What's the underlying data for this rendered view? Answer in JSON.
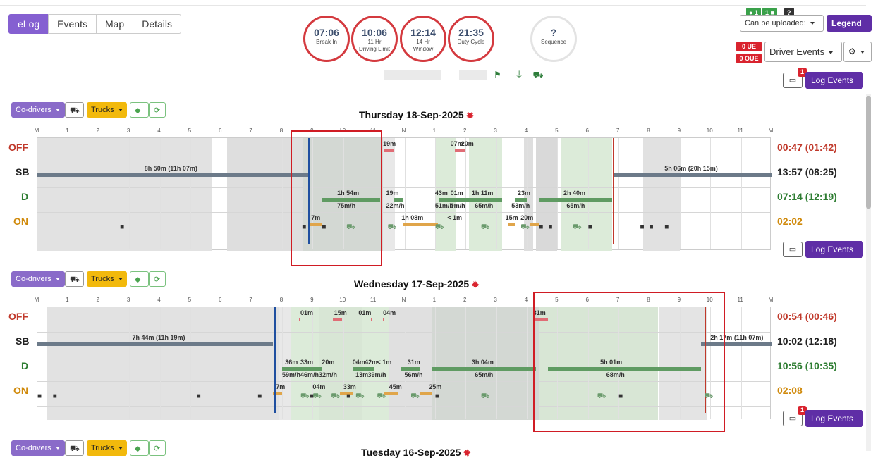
{
  "nav": {
    "tabs": [
      {
        "label": "eLog",
        "active": true
      },
      {
        "label": "Events",
        "active": false
      },
      {
        "label": "Map",
        "active": false
      },
      {
        "label": "Details",
        "active": false
      }
    ]
  },
  "gauges": [
    {
      "value": "07:06",
      "label": "Break In",
      "label2": ""
    },
    {
      "value": "10:06",
      "label": "11 Hr",
      "label2": "Driving Limit"
    },
    {
      "value": "12:14",
      "label": "14 Hr",
      "label2": "Window"
    },
    {
      "value": "21:35",
      "label": "Duty Cycle",
      "label2": ""
    },
    {
      "value": "?",
      "label": "Sequence",
      "label2": ""
    }
  ],
  "toolbar_right": {
    "badge1": "1",
    "badge2": "1",
    "badge3": "?",
    "upload_select": "Can be uploaded:",
    "legend_button": "Legend",
    "ue_badge": "0 UE",
    "oue_badge": "0 OUE",
    "driver_events_select": "Driver Events",
    "chat_count": "1",
    "log_events_button": "Log Events"
  },
  "row_labels": {
    "off": "OFF",
    "sb": "SB",
    "d": "D",
    "on": "ON"
  },
  "hour_labels": [
    "M",
    "1",
    "2",
    "3",
    "4",
    "5",
    "6",
    "7",
    "8",
    "9",
    "10",
    "11",
    "N",
    "1",
    "2",
    "3",
    "4",
    "5",
    "6",
    "7",
    "8",
    "9",
    "10",
    "11",
    "M"
  ],
  "days": [
    {
      "title": "Thursday 18-Sep-2025",
      "codrivers_label": "Co-drivers",
      "trucks_label": "Trucks",
      "totals": {
        "off": "00:47 (01:42)",
        "sb": "13:57 (08:25)",
        "d": "07:14 (12:19)",
        "on": "02:02"
      },
      "labels": [
        "8h 50m (11h 07m)",
        "19m",
        "07m",
        "20m",
        "1h 54m",
        "75m/h",
        "19m",
        "22m/h",
        "43m",
        "01m",
        "51m/h",
        "0m/h",
        "1h 11m",
        "65m/h",
        "23m",
        "53m/h",
        "2h 40m",
        "65m/h",
        "7m",
        "1h 08m",
        "< 1m",
        "15m",
        "20m",
        "5h 06m (20h 15m)"
      ],
      "chat_count": "",
      "log_events_button": "Log Events"
    },
    {
      "title": "Wednesday 17-Sep-2025",
      "codrivers_label": "Co-drivers",
      "trucks_label": "Trucks",
      "totals": {
        "off": "00:54 (00:46)",
        "sb": "10:02 (12:18)",
        "d": "10:56 (10:35)",
        "on": "02:08"
      },
      "labels": [
        "7h 44m (11h 19m)",
        "01m",
        "15m",
        "01m",
        "04m",
        "31m",
        "36m",
        "33m",
        "20m",
        "59m/h",
        "46m/h",
        "32m/h",
        "04m",
        "42m",
        "< 1m",
        "13m",
        "39m/h",
        "31m",
        "56m/h",
        "3h 04m",
        "65m/h",
        "5h 01m",
        "68m/h",
        "7m",
        "04m",
        "33m",
        "45m",
        "25m",
        "2h 17m (11h 07m)"
      ],
      "chat_count": "1",
      "log_events_button": "Log Events"
    },
    {
      "title": "Tuesday 16-Sep-2025",
      "codrivers_label": "Co-drivers",
      "trucks_label": "Trucks"
    }
  ]
}
